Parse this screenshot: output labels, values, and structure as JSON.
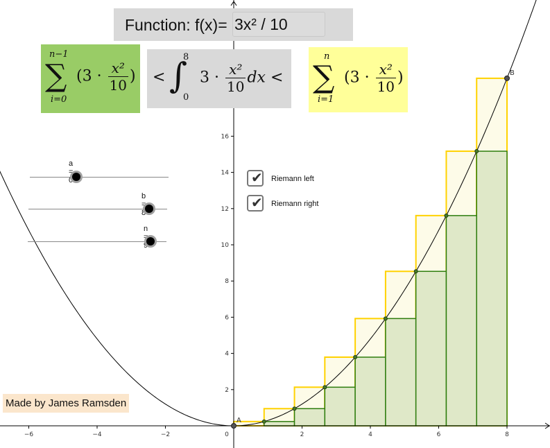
{
  "function_bar": {
    "label": "Function: f(x)=",
    "input_value": "3x² / 10"
  },
  "formulas": {
    "left_sum": {
      "upper": "n−1",
      "lower": "i=0",
      "coef": "(3 ·",
      "num": "x²",
      "den": "10",
      "close": ")",
      "operator": ""
    },
    "integral": {
      "lt1": "<",
      "upper": "8",
      "lower": "0",
      "coef": "3 ·",
      "num": "x²",
      "den": "10",
      "dx": "dx",
      "lt2": "<"
    },
    "right_sum": {
      "upper": "n",
      "lower": "i=1",
      "coef": "(3 ·",
      "num": "x²",
      "den": "10",
      "close": ")"
    }
  },
  "sliders": [
    {
      "label": "a = 0",
      "value": 0
    },
    {
      "label": "b = 8",
      "value": 8
    },
    {
      "label": "n = 9",
      "value": 9
    }
  ],
  "checkboxes": [
    {
      "label": "Riemann left",
      "checked": true
    },
    {
      "label": "Riemann right",
      "checked": true
    }
  ],
  "points": {
    "a_label": "A",
    "b_label": "B"
  },
  "credit": "Made by James Ramsden",
  "colors": {
    "left_fill": "#dfe8c8",
    "left_stroke": "#2e7d0e",
    "right_fill": "#fdfbe8",
    "right_stroke": "#ffd200",
    "curve": "#000000",
    "axis": "#000000"
  },
  "chart_data": {
    "type": "line",
    "function": "3x²/10",
    "xlim": [
      -7,
      9
    ],
    "ylim": [
      -1,
      18
    ],
    "x_ticks": [
      -6,
      -4,
      -2,
      0,
      2,
      4,
      6,
      8
    ],
    "y_ticks": [
      2,
      4,
      6,
      8,
      10,
      12,
      14,
      16
    ],
    "a": 0,
    "b": 8,
    "n": 9,
    "grid": false
  }
}
